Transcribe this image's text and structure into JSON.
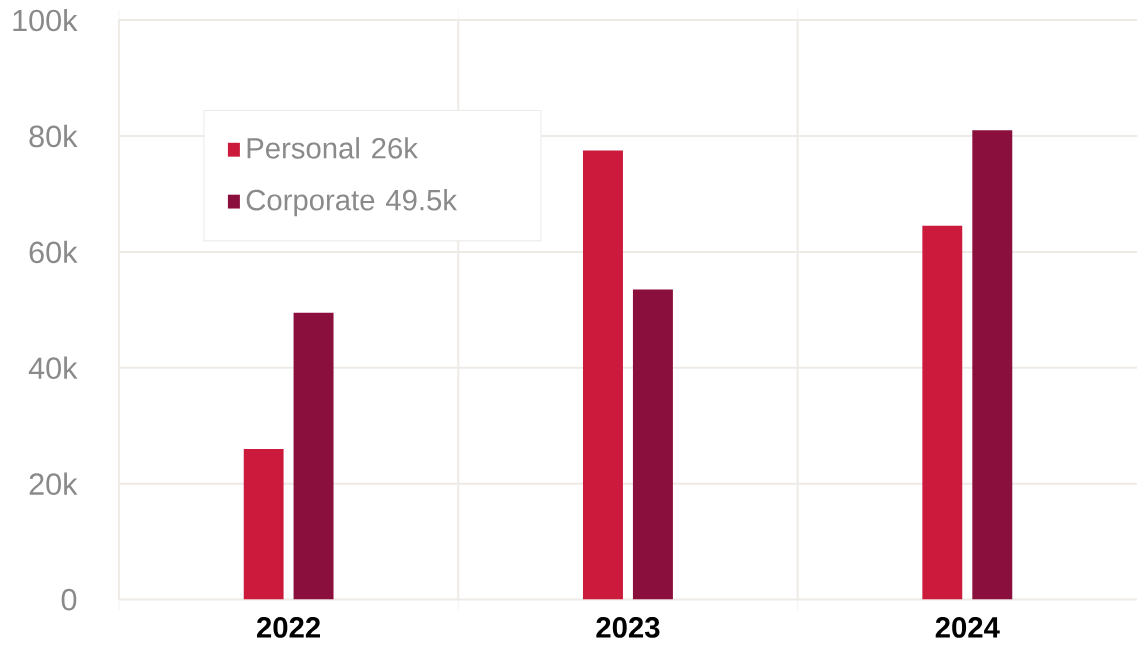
{
  "chart_data": {
    "type": "bar",
    "categories": [
      "2022",
      "2023",
      "2024"
    ],
    "series": [
      {
        "name": "Personal",
        "color": "#cc1a3c",
        "values": [
          26000,
          77500,
          64500
        ]
      },
      {
        "name": "Corporate",
        "color": "#8b0f3c",
        "values": [
          49500,
          53500,
          81000
        ]
      }
    ],
    "ylim": [
      0,
      100000
    ],
    "yticks": [
      0,
      {
        "value": 20000,
        "label": "20k"
      },
      {
        "value": 40000,
        "label": "40k"
      },
      {
        "value": 60000,
        "label": "60k"
      },
      {
        "value": 80000,
        "label": "80k"
      },
      {
        "value": 100000,
        "label": "100k"
      }
    ],
    "grid": true,
    "legend": "top left",
    "annotations": [
      "26k",
      "49.5k"
    ]
  }
}
